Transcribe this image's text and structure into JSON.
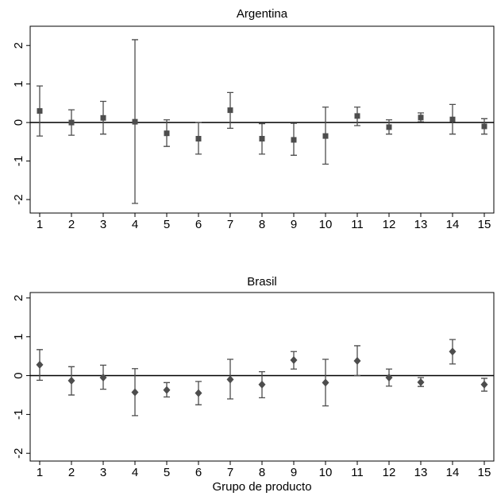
{
  "chart_data": [
    {
      "type": "errorbar",
      "title": "Argentina",
      "marker": "square",
      "color": "#4d4d4d",
      "refline": 0,
      "x": [
        1,
        2,
        3,
        4,
        5,
        6,
        7,
        8,
        9,
        10,
        11,
        12,
        13,
        14,
        15
      ],
      "values": [
        0.3,
        0.0,
        0.12,
        0.02,
        -0.28,
        -0.42,
        0.32,
        -0.42,
        -0.45,
        -0.35,
        0.17,
        -0.12,
        0.13,
        0.08,
        -0.1
      ],
      "lower": [
        -0.35,
        -0.33,
        -0.3,
        -2.1,
        -0.62,
        -0.82,
        -0.15,
        -0.82,
        -0.85,
        -1.08,
        -0.08,
        -0.3,
        0.02,
        -0.3,
        -0.3
      ],
      "upper": [
        0.95,
        0.33,
        0.55,
        2.15,
        0.07,
        0.0,
        0.78,
        -0.03,
        -0.02,
        0.4,
        0.4,
        0.07,
        0.25,
        0.47,
        0.1
      ],
      "xlim": [
        0.7,
        15.3
      ],
      "xticks": [
        1,
        2,
        3,
        4,
        5,
        6,
        7,
        8,
        9,
        10,
        11,
        12,
        13,
        14,
        15
      ],
      "ylim": [
        -2.35,
        2.5
      ],
      "yticks": [
        -2,
        -1,
        0,
        1,
        2
      ]
    },
    {
      "type": "errorbar",
      "title": "Brasil",
      "marker": "diamond",
      "color": "#4d4d4d",
      "refline": 0,
      "xlabel": "Grupo de producto",
      "x": [
        1,
        2,
        3,
        4,
        5,
        6,
        7,
        8,
        9,
        10,
        11,
        12,
        13,
        14,
        15
      ],
      "values": [
        0.28,
        -0.13,
        -0.05,
        -0.43,
        -0.37,
        -0.45,
        -0.1,
        -0.23,
        0.4,
        -0.18,
        0.38,
        -0.05,
        -0.17,
        0.62,
        -0.23
      ],
      "lower": [
        -0.12,
        -0.5,
        -0.35,
        -1.03,
        -0.55,
        -0.75,
        -0.6,
        -0.57,
        0.17,
        -0.78,
        0.0,
        -0.27,
        -0.28,
        0.3,
        -0.4
      ],
      "upper": [
        0.67,
        0.23,
        0.27,
        0.18,
        -0.18,
        -0.15,
        0.42,
        0.1,
        0.62,
        0.42,
        0.77,
        0.17,
        -0.05,
        0.93,
        -0.07
      ],
      "xlim": [
        0.7,
        15.3
      ],
      "xticks": [
        1,
        2,
        3,
        4,
        5,
        6,
        7,
        8,
        9,
        10,
        11,
        12,
        13,
        14,
        15
      ],
      "ylim": [
        -2.2,
        2.14
      ],
      "yticks": [
        -2,
        -1,
        0,
        1,
        2
      ]
    }
  ]
}
